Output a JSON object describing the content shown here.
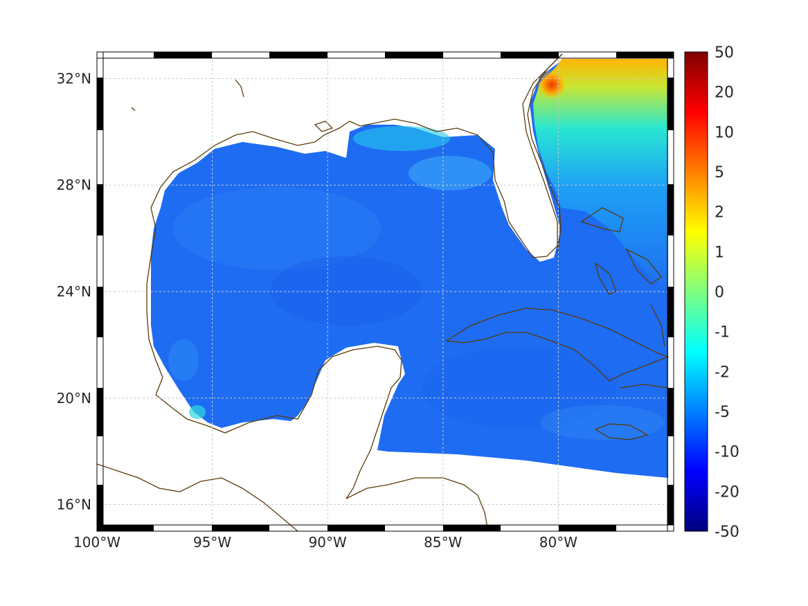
{
  "map": {
    "lon_range": [
      -100,
      -75
    ],
    "lat_range": [
      15,
      33
    ],
    "lon_ticks": [
      {
        "value": -100,
        "label": "100°W"
      },
      {
        "value": -95,
        "label": "95°W"
      },
      {
        "value": -90,
        "label": "90°W"
      },
      {
        "value": -85,
        "label": "85°W"
      },
      {
        "value": -80,
        "label": "80°W"
      }
    ],
    "lat_ticks": [
      {
        "value": 16,
        "label": "16°N"
      },
      {
        "value": 20,
        "label": "20°N"
      },
      {
        "value": 24,
        "label": "24°N"
      },
      {
        "value": 28,
        "label": "28°N"
      },
      {
        "value": 32,
        "label": "32°N"
      }
    ],
    "grid": true,
    "colors": {
      "coastline": "#5a3a0a",
      "land": "#ffffff",
      "ocean_main": "#1e64f0",
      "frame": "#000000"
    }
  },
  "colorbar": {
    "labels": [
      "50",
      "20",
      "10",
      "5",
      "2",
      "1",
      "0",
      "-1",
      "-2",
      "-5",
      "-10",
      "-20",
      "-50"
    ],
    "colormap": "jet"
  }
}
